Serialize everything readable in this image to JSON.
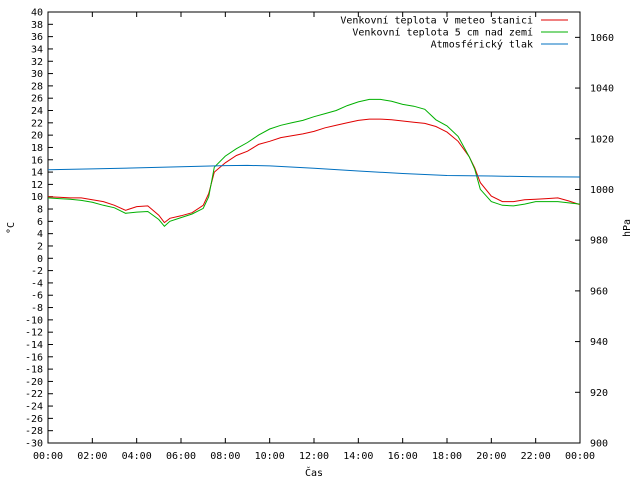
{
  "chart_data": {
    "type": "line",
    "title": "",
    "xlabel": "Čas",
    "ylabel": "°C",
    "y2label": "hPa",
    "xlim": [
      0,
      24
    ],
    "ylim": [
      -30,
      40
    ],
    "y2lim": [
      900,
      1070
    ],
    "x_ticks": [
      "00:00",
      "02:00",
      "04:00",
      "06:00",
      "08:00",
      "10:00",
      "12:00",
      "14:00",
      "16:00",
      "18:00",
      "20:00",
      "22:00",
      "00:00"
    ],
    "y_ticks": [
      40,
      38,
      36,
      34,
      32,
      30,
      28,
      26,
      24,
      22,
      20,
      18,
      16,
      14,
      12,
      10,
      8,
      6,
      4,
      2,
      0,
      -2,
      -4,
      -6,
      -8,
      -10,
      -12,
      -14,
      -16,
      -18,
      -20,
      -22,
      -24,
      -26,
      -28,
      -30
    ],
    "y2_ticks": [
      1060,
      1040,
      1020,
      1000,
      980,
      960,
      940,
      920,
      900
    ],
    "grid": false,
    "legend_position": "top-right",
    "series": [
      {
        "name": "Venkovní teplota v meteo stanici",
        "color": "#e00000",
        "axis": "left",
        "x": [
          0,
          0.5,
          1,
          1.5,
          2,
          2.5,
          3,
          3.5,
          4,
          4.5,
          5,
          5.25,
          5.5,
          6,
          6.5,
          7,
          7.25,
          7.5,
          8,
          8.5,
          9,
          9.5,
          10,
          10.5,
          11,
          11.5,
          12,
          12.5,
          13,
          13.5,
          14,
          14.5,
          15,
          15.5,
          16,
          16.5,
          17,
          17.5,
          18,
          18.5,
          19,
          19.25,
          19.5,
          20,
          20.5,
          21,
          21.5,
          22,
          22.5,
          23,
          23.5,
          24
        ],
        "values": [
          10.0,
          9.9,
          9.8,
          9.8,
          9.5,
          9.2,
          8.6,
          7.8,
          8.4,
          8.5,
          7.0,
          5.8,
          6.5,
          6.9,
          7.4,
          8.6,
          10.5,
          14.0,
          15.5,
          16.7,
          17.4,
          18.5,
          19.0,
          19.6,
          19.9,
          20.2,
          20.6,
          21.2,
          21.6,
          22.0,
          22.4,
          22.6,
          22.6,
          22.5,
          22.3,
          22.1,
          21.9,
          21.4,
          20.5,
          19.0,
          16.5,
          14.7,
          12.3,
          10.1,
          9.2,
          9.2,
          9.5,
          9.6,
          9.7,
          9.8,
          9.3,
          8.7
        ]
      },
      {
        "name": "Venkovní teplota 5 cm nad zemí",
        "color": "#00b000",
        "axis": "left",
        "x": [
          0,
          0.5,
          1,
          1.5,
          2,
          2.5,
          3,
          3.5,
          4,
          4.5,
          5,
          5.25,
          5.5,
          6,
          6.5,
          7,
          7.25,
          7.5,
          8,
          8.5,
          9,
          9.5,
          10,
          10.5,
          11,
          11.5,
          12,
          12.5,
          13,
          13.5,
          14,
          14.5,
          15,
          15.5,
          16,
          16.5,
          17,
          17.5,
          18,
          18.5,
          19,
          19.25,
          19.5,
          20,
          20.5,
          21,
          21.5,
          22,
          22.5,
          23,
          23.5,
          24
        ],
        "values": [
          9.8,
          9.7,
          9.6,
          9.4,
          9.1,
          8.6,
          8.2,
          7.3,
          7.5,
          7.6,
          6.3,
          5.2,
          6.0,
          6.6,
          7.2,
          8.1,
          10.0,
          14.8,
          16.6,
          17.8,
          18.8,
          20.0,
          21.0,
          21.6,
          22.0,
          22.4,
          23.0,
          23.5,
          24.0,
          24.8,
          25.4,
          25.8,
          25.8,
          25.5,
          25.0,
          24.7,
          24.2,
          22.5,
          21.5,
          19.8,
          16.5,
          14.5,
          11.2,
          9.2,
          8.6,
          8.5,
          8.8,
          9.2,
          9.2,
          9.2,
          9.0,
          8.8
        ]
      },
      {
        "name": "Atmosférický tlak",
        "color": "#0070c0",
        "axis": "right",
        "x": [
          0,
          2,
          4,
          6,
          8,
          9,
          10,
          12,
          14,
          16,
          18,
          20,
          22,
          24
        ],
        "values": [
          1007.8,
          1008.1,
          1008.5,
          1009.0,
          1009.4,
          1009.5,
          1009.3,
          1008.4,
          1007.3,
          1006.3,
          1005.5,
          1005.3,
          1005.0,
          1004.9
        ]
      }
    ]
  }
}
